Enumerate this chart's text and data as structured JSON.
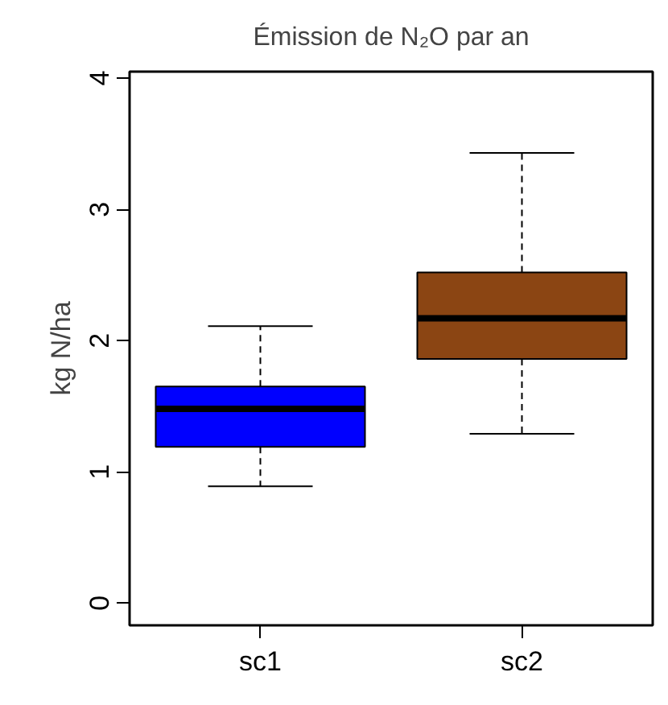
{
  "chart_data": {
    "type": "box",
    "title": "Émission de N₂O par an",
    "ylabel": "kg N/ha",
    "categories": [
      "sc1",
      "sc2"
    ],
    "colors": [
      "#0000ff",
      "#8b4513"
    ],
    "boxes": [
      {
        "low": 0.89,
        "q1": 1.19,
        "median": 1.48,
        "q3": 1.65,
        "high": 2.11
      },
      {
        "low": 1.29,
        "q1": 1.86,
        "median": 2.17,
        "q3": 2.52,
        "high": 3.43
      }
    ],
    "ylim": [
      -0.17,
      4.05
    ],
    "yticks": [
      0,
      1,
      2,
      3,
      4
    ],
    "grid": false
  }
}
